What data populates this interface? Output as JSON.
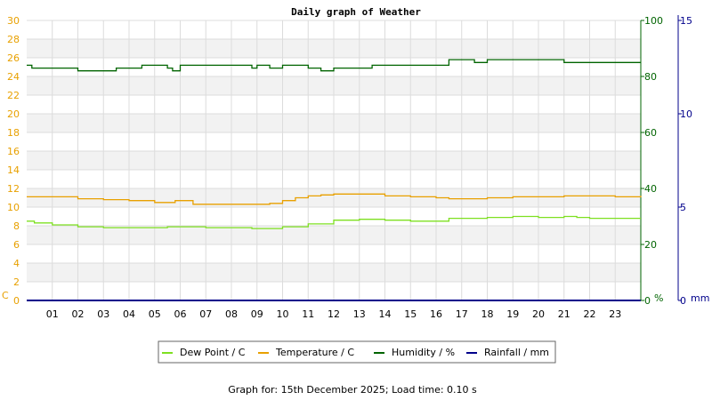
{
  "chart_data": {
    "type": "line",
    "title": "Daily graph of Weather",
    "x_ticks": [
      "01",
      "02",
      "03",
      "04",
      "05",
      "06",
      "07",
      "08",
      "09",
      "10",
      "11",
      "12",
      "13",
      "14",
      "15",
      "16",
      "17",
      "18",
      "19",
      "20",
      "21",
      "22",
      "23"
    ],
    "x_range": [
      0,
      24
    ],
    "grid": true,
    "legend_placement": "bottom-center",
    "axes": {
      "left": {
        "unit": "C",
        "range": [
          0,
          30
        ],
        "ticks": [
          "0",
          "2",
          "4",
          "6",
          "8",
          "10",
          "12",
          "14",
          "16",
          "18",
          "20",
          "22",
          "24",
          "26",
          "28",
          "30"
        ],
        "color": "#e8a000"
      },
      "right1": {
        "unit": "%",
        "range": [
          0,
          100
        ],
        "ticks": [
          "0",
          "20",
          "40",
          "60",
          "80",
          "100"
        ],
        "color": "#006400"
      },
      "right2": {
        "unit": "mm",
        "range": [
          0,
          15
        ],
        "ticks": [
          "0",
          "5",
          "10",
          "15"
        ],
        "color": "#00008b"
      }
    },
    "series": [
      {
        "name": "Dew Point / C",
        "axis": "left",
        "color": "#7ee020",
        "x": [
          0,
          0.3,
          1,
          2,
          3,
          4,
          5,
          5.5,
          6,
          7,
          8,
          8.8,
          9.2,
          10,
          11,
          12,
          13,
          14,
          15,
          16,
          16.5,
          17,
          18,
          19,
          19.5,
          20,
          21,
          21.5,
          22,
          23,
          24
        ],
        "y": [
          8.5,
          8.3,
          8.1,
          7.9,
          7.8,
          7.8,
          7.8,
          7.9,
          7.9,
          7.8,
          7.8,
          7.7,
          7.7,
          7.9,
          8.2,
          8.6,
          8.7,
          8.6,
          8.5,
          8.5,
          8.8,
          8.8,
          8.9,
          9.0,
          9.0,
          8.9,
          9.0,
          8.9,
          8.8,
          8.8,
          8.8
        ]
      },
      {
        "name": "Temperature / C",
        "axis": "left",
        "color": "#e8a000",
        "x": [
          0,
          1,
          2,
          3,
          4,
          5,
          5.8,
          6.5,
          7,
          8,
          9,
          9.5,
          10,
          10.5,
          11,
          11.5,
          12,
          13,
          14,
          15,
          16,
          16.5,
          17,
          18,
          19,
          20,
          21,
          22,
          23,
          24
        ],
        "y": [
          11.1,
          11.1,
          10.9,
          10.8,
          10.7,
          10.5,
          10.7,
          10.3,
          10.3,
          10.3,
          10.3,
          10.4,
          10.7,
          11.0,
          11.2,
          11.3,
          11.4,
          11.4,
          11.2,
          11.1,
          11.0,
          10.9,
          10.9,
          11.0,
          11.1,
          11.1,
          11.2,
          11.2,
          11.1,
          11.2
        ]
      },
      {
        "name": "Humidity / %",
        "axis": "right1",
        "color": "#006400",
        "x": [
          0,
          0.2,
          1,
          2,
          3,
          3.5,
          4,
          4.5,
          5,
          5.5,
          5.7,
          6,
          7,
          8,
          8.5,
          8.8,
          9,
          9.5,
          10,
          11,
          11.5,
          12,
          12.5,
          13,
          13.5,
          14,
          15,
          16,
          16.5,
          17,
          17.5,
          18,
          19,
          20,
          21,
          21.5,
          22,
          23,
          24
        ],
        "y": [
          84,
          83,
          83,
          82,
          82,
          83,
          83,
          84,
          84,
          83,
          82,
          84,
          84,
          84,
          84,
          83,
          84,
          83,
          84,
          83,
          82,
          83,
          83,
          83,
          84,
          84,
          84,
          84,
          86,
          86,
          85,
          86,
          86,
          86,
          85,
          85,
          85,
          85,
          85
        ]
      },
      {
        "name": "Rainfall / mm",
        "axis": "right2",
        "color": "#00008b",
        "x": [
          0,
          24
        ],
        "y": [
          0,
          0
        ]
      }
    ]
  },
  "legend": {
    "items": [
      {
        "label": "Dew Point / C",
        "color": "#7ee020"
      },
      {
        "label": "Temperature / C",
        "color": "#e8a000"
      },
      {
        "label": "Humidity / %",
        "color": "#006400"
      },
      {
        "label": "Rainfall / mm",
        "color": "#00008b"
      }
    ]
  },
  "footer": {
    "text": "Graph for: 15th December 2025; Load time: 0.10 s"
  }
}
